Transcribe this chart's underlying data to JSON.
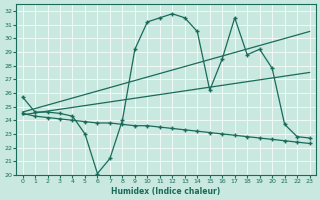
{
  "xlabel": "Humidex (Indice chaleur)",
  "xlim": [
    -0.5,
    23.5
  ],
  "ylim": [
    20,
    32.5
  ],
  "yticks": [
    20,
    21,
    22,
    23,
    24,
    25,
    26,
    27,
    28,
    29,
    30,
    31,
    32
  ],
  "xticks": [
    0,
    1,
    2,
    3,
    4,
    5,
    6,
    7,
    8,
    9,
    10,
    11,
    12,
    13,
    14,
    15,
    16,
    17,
    18,
    19,
    20,
    21,
    22,
    23
  ],
  "bg_color": "#c8e8e0",
  "line_color": "#1a6b5a",
  "line1_x": [
    0,
    1,
    2,
    3,
    4,
    5,
    6,
    7,
    8,
    9,
    10,
    11,
    12,
    13,
    14,
    15,
    16,
    17,
    18,
    19,
    20,
    21,
    22,
    23
  ],
  "line1_y": [
    25.7,
    24.6,
    24.6,
    24.5,
    24.3,
    23.0,
    20.1,
    21.2,
    24.0,
    29.2,
    31.2,
    31.5,
    31.8,
    31.5,
    30.5,
    26.2,
    28.5,
    31.5,
    28.8,
    29.2,
    27.8,
    23.7,
    22.8,
    22.7
  ],
  "line2_x": [
    0,
    1,
    2,
    3,
    4,
    5,
    6,
    7,
    8,
    9,
    10,
    11,
    12,
    13,
    14,
    15,
    16,
    17,
    18,
    19,
    20,
    21,
    22,
    23
  ],
  "line2_y": [
    24.5,
    24.3,
    24.2,
    24.1,
    24.0,
    23.9,
    23.8,
    23.8,
    23.7,
    23.6,
    23.6,
    23.5,
    23.4,
    23.3,
    23.2,
    23.1,
    23.0,
    22.9,
    22.8,
    22.7,
    22.6,
    22.5,
    22.4,
    22.3
  ],
  "line3_x": [
    0,
    23
  ],
  "line3_y": [
    24.6,
    30.5
  ],
  "line4_x": [
    0,
    23
  ],
  "line4_y": [
    24.4,
    27.5
  ]
}
